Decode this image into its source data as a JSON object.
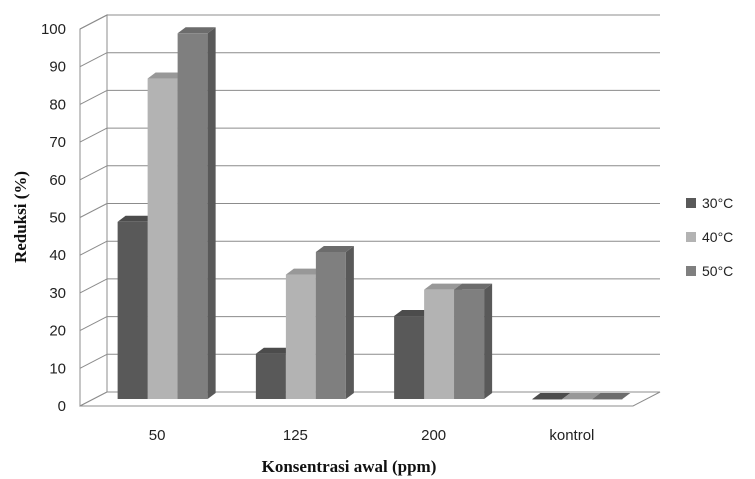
{
  "chart_data": {
    "type": "bar",
    "xlabel": "Konsentrasi awal (ppm)",
    "ylabel": "Reduksi (%)",
    "ylim": [
      0,
      100
    ],
    "yticks": [
      "0",
      "10",
      "20",
      "30",
      "40",
      "50",
      "60",
      "70",
      "80",
      "90",
      "100"
    ],
    "categories": [
      "50",
      "125",
      "200",
      "kontrol"
    ],
    "series": [
      {
        "name": "30°C",
        "color": "#595959",
        "values": [
          47,
          12,
          22,
          0
        ]
      },
      {
        "name": "40°C",
        "color": "#b3b3b3",
        "values": [
          85,
          33,
          29,
          0
        ]
      },
      {
        "name": "50°C",
        "color": "#7f7f7f",
        "values": [
          97,
          39,
          29,
          0
        ]
      }
    ],
    "grid": true,
    "legend_position": "right",
    "style": "3d-clustered-column"
  }
}
